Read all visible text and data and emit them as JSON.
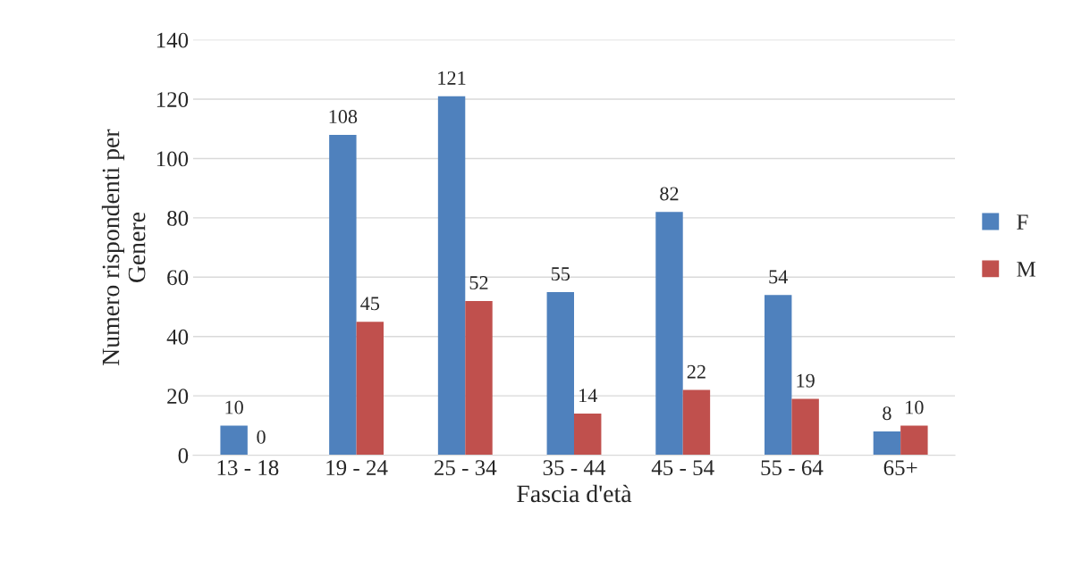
{
  "chart_data": {
    "type": "bar",
    "xlabel": "Fascia d'età",
    "ylabel": "Numero rispondenti per\nGenere",
    "categories": [
      "13 - 18",
      "19 - 24",
      "25 - 34",
      "35 - 44",
      "45 - 54",
      "55 - 64",
      "65+"
    ],
    "series": [
      {
        "name": "F",
        "color": "#4f81bd",
        "values": [
          10,
          108,
          121,
          55,
          82,
          54,
          8
        ]
      },
      {
        "name": "M",
        "color": "#c0504d",
        "values": [
          0,
          45,
          52,
          14,
          22,
          19,
          10
        ]
      }
    ],
    "ylim": [
      0,
      140
    ],
    "yticks": [
      0,
      20,
      40,
      60,
      80,
      100,
      120,
      140
    ],
    "grid": "y",
    "legend": "right",
    "data_labels": true
  }
}
